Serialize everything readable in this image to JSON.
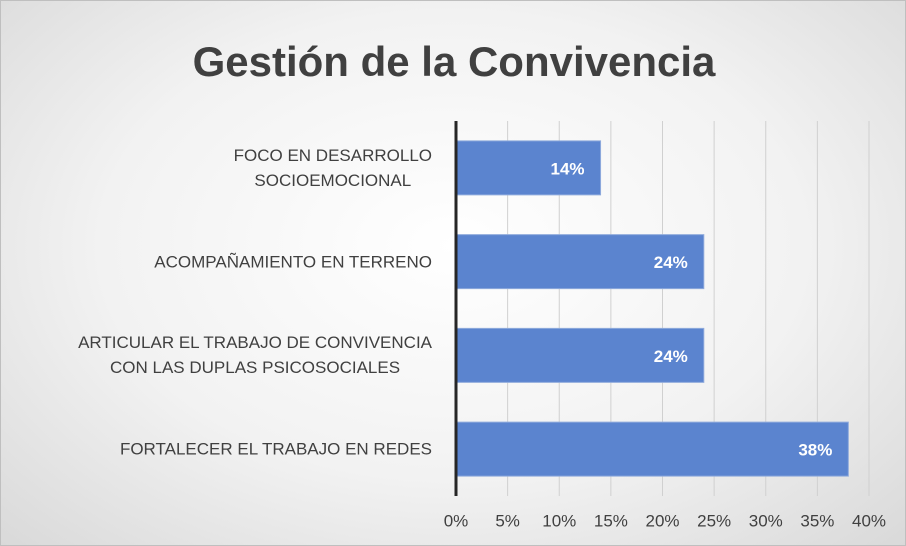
{
  "chart_data": {
    "type": "hbar",
    "title": "Gestión de la Convivencia",
    "categories": [
      "FOCO EN DESARROLLO\nSOCIOEMOCIONAL",
      "ACOMPAÑAMIENTO EN TERRENO",
      "ARTICULAR EL TRABAJO DE CONVIVENCIA\nCON LAS DUPLAS PSICOSOCIALES",
      "FORTALECER EL TRABAJO EN REDES"
    ],
    "values": [
      14,
      24,
      24,
      38
    ],
    "value_labels": [
      "14%",
      "24%",
      "24%",
      "38%"
    ],
    "color": "#5b84cf",
    "xlim": [
      0,
      40
    ],
    "xticks": [
      {
        "value": 0,
        "label": "0%"
      },
      {
        "value": 5,
        "label": "5%"
      },
      {
        "value": 10,
        "label": "10%"
      },
      {
        "value": 15,
        "label": "15%"
      },
      {
        "value": 20,
        "label": "20%"
      },
      {
        "value": 25,
        "label": "25%"
      },
      {
        "value": 30,
        "label": "30%"
      },
      {
        "value": 35,
        "label": "35%"
      },
      {
        "value": 40,
        "label": "40%"
      }
    ],
    "grid": true
  }
}
